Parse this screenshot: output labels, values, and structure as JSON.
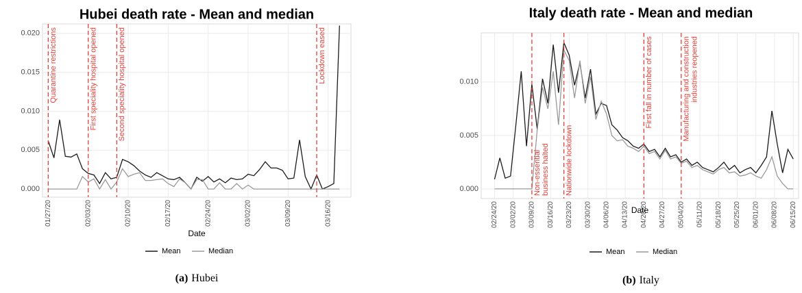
{
  "chart_data": [
    {
      "type": "line",
      "title": "Hubei death rate - Mean and median",
      "xlabel": "Date",
      "x": [
        "01/27/20",
        "01/28/20",
        "01/29/20",
        "01/30/20",
        "01/31/20",
        "02/01/20",
        "02/02/20",
        "02/03/20",
        "02/04/20",
        "02/05/20",
        "02/06/20",
        "02/07/20",
        "02/08/20",
        "02/09/20",
        "02/10/20",
        "02/11/20",
        "02/12/20",
        "02/13/20",
        "02/14/20",
        "02/15/20",
        "02/16/20",
        "02/17/20",
        "02/18/20",
        "02/19/20",
        "02/20/20",
        "02/21/20",
        "02/22/20",
        "02/23/20",
        "02/24/20",
        "02/25/20",
        "02/26/20",
        "02/27/20",
        "02/28/20",
        "02/29/20",
        "03/01/20",
        "03/02/20",
        "03/03/20",
        "03/04/20",
        "03/05/20",
        "03/06/20",
        "03/07/20",
        "03/08/20",
        "03/09/20",
        "03/10/20",
        "03/11/20",
        "03/12/20",
        "03/13/20",
        "03/14/20",
        "03/15/20",
        "03/16/20",
        "03/17/20",
        "03/18/20"
      ],
      "series": [
        {
          "name": "Mean",
          "color": "#1a1a1a",
          "values": [
            0.0062,
            0.004,
            0.0089,
            0.0042,
            0.0041,
            0.0045,
            0.0026,
            0.002,
            0.0018,
            0.0007,
            0.0021,
            0.0013,
            0.0015,
            0.0038,
            0.0035,
            0.003,
            0.0023,
            0.0018,
            0.0015,
            0.0021,
            0.0017,
            0.0013,
            0.0012,
            0.0015,
            0.0008,
            0.0,
            0.0015,
            0.001,
            0.0016,
            0.0009,
            0.0013,
            0.0008,
            0.0014,
            0.0012,
            0.0013,
            0.0019,
            0.0017,
            0.0025,
            0.0035,
            0.0027,
            0.0027,
            0.0024,
            0.0013,
            0.0014,
            0.0063,
            0.0016,
            0.0,
            0.0018,
            0.0,
            0.0003,
            0.0007,
            0.021
          ]
        },
        {
          "name": "Median",
          "color": "#999999",
          "values": [
            0,
            0,
            0,
            0,
            0,
            0,
            0.0016,
            0.0009,
            0.0013,
            0,
            0.0012,
            0,
            0.0009,
            0.0026,
            0.0016,
            0.0019,
            0.0021,
            0.0011,
            0.0011,
            0.0012,
            0.0013,
            0.0007,
            0.0003,
            0.0013,
            0.0008,
            0,
            0.0012,
            0.0012,
            0,
            0,
            0.0008,
            0,
            0,
            0.0007,
            0,
            0.0005,
            0,
            0,
            0,
            0,
            0,
            0,
            0,
            0,
            0,
            0,
            0,
            0,
            0,
            0,
            0,
            0
          ]
        }
      ],
      "xlim": [
        "01/26/20",
        "03/20/20"
      ],
      "xticks": [
        "01/27/20",
        "02/03/20",
        "02/10/20",
        "02/17/20",
        "02/24/20",
        "03/02/20",
        "03/09/20",
        "03/16/20"
      ],
      "ylim": [
        -0.00105,
        0.0212
      ],
      "yticks": [
        {
          "value": 0,
          "label": "0.000"
        },
        {
          "value": 0.005,
          "label": "0.005"
        },
        {
          "value": 0.01,
          "label": "0.010"
        },
        {
          "value": 0.015,
          "label": "0.015"
        },
        {
          "value": 0.02,
          "label": "0.020"
        }
      ],
      "grid": true,
      "legend": "bottom",
      "annotation_color": "#e8403a",
      "annotations": [
        {
          "x": "01/27/20",
          "text": [
            "Quarantine restrictions"
          ]
        },
        {
          "x": "02/03/20",
          "text": [
            "First speciality hospital opened"
          ]
        },
        {
          "x": "02/08/20",
          "text": [
            "Second speciality hospital opened"
          ]
        },
        {
          "x": "03/14/20",
          "text": [
            "Lockdown eased"
          ]
        }
      ],
      "caption_label": "(a)",
      "caption": "Hubei"
    },
    {
      "type": "line",
      "title": "Italy death rate - Mean and median",
      "xlabel": "Date",
      "x": [
        "02/24/20",
        "02/26/20",
        "02/28/20",
        "03/01/20",
        "03/03/20",
        "03/05/20",
        "03/07/20",
        "03/09/20",
        "03/11/20",
        "03/13/20",
        "03/15/20",
        "03/17/20",
        "03/19/20",
        "03/21/20",
        "03/23/20",
        "03/25/20",
        "03/27/20",
        "03/29/20",
        "03/31/20",
        "04/02/20",
        "04/04/20",
        "04/06/20",
        "04/08/20",
        "04/10/20",
        "04/12/20",
        "04/14/20",
        "04/16/20",
        "04/18/20",
        "04/20/20",
        "04/22/20",
        "04/24/20",
        "04/26/20",
        "04/28/20",
        "04/30/20",
        "05/02/20",
        "05/04/20",
        "05/06/20",
        "05/08/20",
        "05/10/20",
        "05/12/20",
        "05/14/20",
        "05/16/20",
        "05/18/20",
        "05/20/20",
        "05/22/20",
        "05/24/20",
        "05/26/20",
        "05/28/20",
        "05/30/20",
        "06/01/20",
        "06/03/20",
        "06/05/20",
        "06/07/20",
        "06/09/20",
        "06/11/20",
        "06/13/20",
        "06/15/20"
      ],
      "series": [
        {
          "name": "Mean",
          "color": "#1a1a1a",
          "values": [
            0.0009,
            0.0029,
            0.001,
            0.0012,
            0.006,
            0.011,
            0.004,
            0.0098,
            0.0056,
            0.0103,
            0.008,
            0.0135,
            0.009,
            0.0137,
            0.0125,
            0.0097,
            0.0118,
            0.0085,
            0.0112,
            0.007,
            0.008,
            0.0078,
            0.006,
            0.0055,
            0.0048,
            0.0045,
            0.004,
            0.0038,
            0.0042,
            0.0035,
            0.0037,
            0.003,
            0.0038,
            0.003,
            0.0032,
            0.0025,
            0.0028,
            0.0022,
            0.0025,
            0.002,
            0.0018,
            0.0016,
            0.002,
            0.0025,
            0.0018,
            0.0022,
            0.0015,
            0.0018,
            0.002,
            0.0015,
            0.0022,
            0.003,
            0.0073,
            0.0042,
            0.0015,
            0.0037,
            0.0028
          ]
        },
        {
          "name": "Median",
          "color": "#999999",
          "values": [
            0,
            0,
            0,
            0,
            0,
            0,
            0,
            0,
            0.0055,
            0.0095,
            0.0075,
            0.011,
            0.006,
            0.013,
            0.012,
            0.0085,
            0.012,
            0.008,
            0.0105,
            0.0065,
            0.0082,
            0.007,
            0.005,
            0.0045,
            0.0046,
            0.004,
            0.0038,
            0.0035,
            0.004,
            0.0033,
            0.0035,
            0.0028,
            0.0036,
            0.0028,
            0.003,
            0.0024,
            0.0026,
            0.002,
            0.0022,
            0.0018,
            0.0016,
            0.0014,
            0.0018,
            0.002,
            0.0015,
            0.0016,
            0.0012,
            0.0013,
            0.0015,
            0.0012,
            0.001,
            0.0018,
            0.003,
            0.0012,
            0.0005,
            0,
            0
          ]
        }
      ],
      "xlim": [
        "02/19/20",
        "06/17/20"
      ],
      "xticks": [
        "02/24/20",
        "03/02/20",
        "03/09/20",
        "03/16/20",
        "03/23/20",
        "03/30/20",
        "04/06/20",
        "04/13/20",
        "04/20/20",
        "04/27/20",
        "05/04/20",
        "05/11/20",
        "05/18/20",
        "05/25/20",
        "06/01/20",
        "06/08/20",
        "06/15/20"
      ],
      "ylim": [
        -0.0009,
        0.0146
      ],
      "yticks": [
        {
          "value": 0,
          "label": "0.000"
        },
        {
          "value": 0.005,
          "label": "0.005"
        },
        {
          "value": 0.01,
          "label": "0.010"
        }
      ],
      "grid": true,
      "legend": "bottom",
      "annotation_color": "#e8403a",
      "annotations": [
        {
          "x": "03/09/20",
          "text": [
            "Non-essential",
            "business halted"
          ]
        },
        {
          "x": "03/21/20",
          "text": [
            "Nationwide lockdown"
          ]
        },
        {
          "x": "04/20/20",
          "text": [
            "First fall in number of cases"
          ]
        },
        {
          "x": "05/04/20",
          "text": [
            "Manufacturing and construction",
            "industries reopened"
          ]
        }
      ],
      "caption_label": "(b)",
      "caption": "Italy"
    }
  ]
}
